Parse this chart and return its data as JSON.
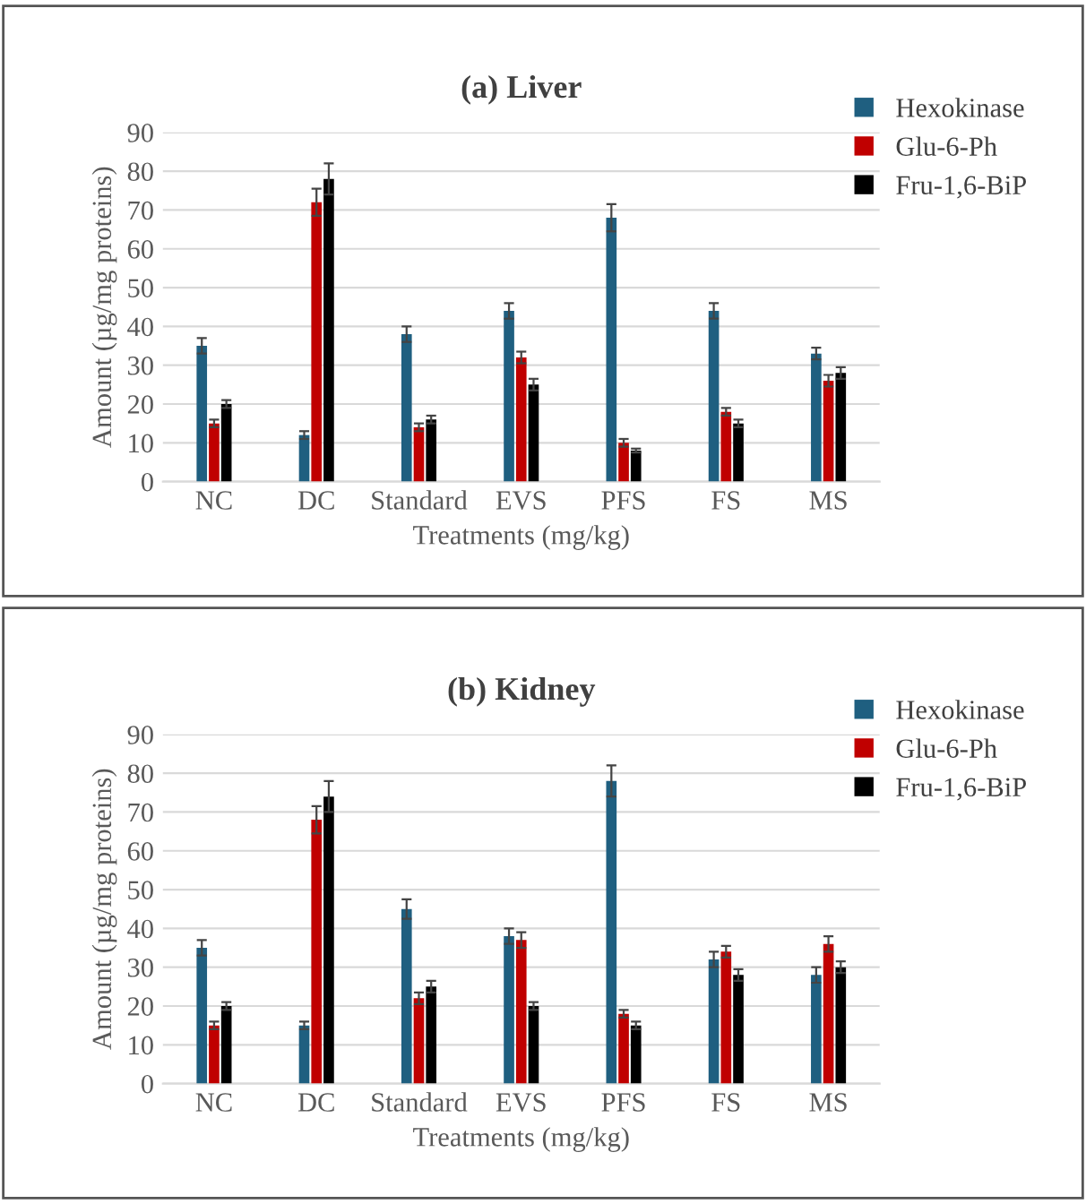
{
  "chart_data": [
    {
      "type": "bar",
      "title": "(a) Liver",
      "xlabel": "Treatments (mg/kg)",
      "ylabel": "Amount (µg/mg proteins)",
      "categories": [
        "NC",
        "DC",
        "Standard",
        "EVS",
        "PFS",
        "FS",
        "MS"
      ],
      "series": [
        {
          "name": "Hexokinase",
          "color": "#1f5f80",
          "values": [
            35,
            12,
            38,
            44,
            68,
            44,
            33
          ],
          "errors": [
            2,
            1,
            2,
            2,
            3.5,
            2,
            1.5
          ]
        },
        {
          "name": "Glu-6-Ph",
          "color": "#c00000",
          "values": [
            15,
            72,
            14,
            32,
            10,
            18,
            26
          ],
          "errors": [
            1,
            3.5,
            1,
            1.5,
            1,
            1,
            1.5
          ]
        },
        {
          "name": "Fru-1,6-BiP",
          "color": "#000000",
          "values": [
            20,
            78,
            16,
            25,
            8,
            15,
            28
          ],
          "errors": [
            1,
            4,
            1,
            1.5,
            0.5,
            1,
            1.5
          ]
        }
      ],
      "ylim": [
        0,
        90
      ],
      "yticks": [
        0,
        10,
        20,
        30,
        40,
        50,
        60,
        70,
        80,
        90
      ],
      "grid": "y",
      "legend": "top right"
    },
    {
      "type": "bar",
      "title": "(b) Kidney",
      "xlabel": "Treatments (mg/kg)",
      "ylabel": "Amount (µg/mg proteins)",
      "categories": [
        "NC",
        "DC",
        "Standard",
        "EVS",
        "PFS",
        "FS",
        "MS"
      ],
      "series": [
        {
          "name": "Hexokinase",
          "color": "#1f5f80",
          "values": [
            35,
            15,
            45,
            38,
            78,
            32,
            28
          ],
          "errors": [
            2,
            1,
            2.5,
            2,
            4,
            2,
            2
          ]
        },
        {
          "name": "Glu-6-Ph",
          "color": "#c00000",
          "values": [
            15,
            68,
            22,
            37,
            18,
            34,
            36
          ],
          "errors": [
            1,
            3.5,
            1.5,
            2,
            1,
            1.5,
            2
          ]
        },
        {
          "name": "Fru-1,6-BiP",
          "color": "#000000",
          "values": [
            20,
            74,
            25,
            20,
            15,
            28,
            30
          ],
          "errors": [
            1,
            4,
            1.5,
            1,
            1,
            1.5,
            1.5
          ]
        }
      ],
      "ylim": [
        0,
        90
      ],
      "yticks": [
        0,
        10,
        20,
        30,
        40,
        50,
        60,
        70,
        80,
        90
      ],
      "grid": "y",
      "legend": "top right"
    }
  ]
}
